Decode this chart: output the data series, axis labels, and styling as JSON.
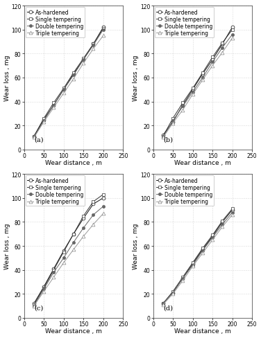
{
  "subplots": [
    "(a)",
    "(b)",
    "(c)",
    "(d)"
  ],
  "legend_labels": [
    "As-hardened",
    "Single tempering",
    "Double tempering",
    "Triple tempering"
  ],
  "xlabel": "Wear distance , m",
  "ylabel": "Wear loss , mg",
  "xlim": [
    0,
    250
  ],
  "ylim": [
    0,
    120
  ],
  "xticks": [
    0,
    50,
    100,
    150,
    200,
    250
  ],
  "yticks": [
    0,
    20,
    40,
    60,
    80,
    100,
    120
  ],
  "x_data": [
    25,
    50,
    75,
    100,
    125,
    150,
    175,
    200
  ],
  "subplot_data": {
    "a": {
      "As-hardened": [
        11,
        25,
        37,
        50,
        63,
        75,
        88,
        102
      ],
      "Single tempering": [
        11,
        26,
        39,
        51,
        64,
        76,
        88,
        101
      ],
      "Double tempering": [
        10,
        24,
        37,
        50,
        62,
        75,
        87,
        100
      ],
      "Triple tempering": [
        10,
        23,
        35,
        47,
        59,
        72,
        84,
        95
      ]
    },
    "b": {
      "As-hardened": [
        12,
        23,
        37,
        50,
        63,
        75,
        88,
        102
      ],
      "Single tempering": [
        11,
        26,
        39,
        51,
        64,
        77,
        89,
        100
      ],
      "Double tempering": [
        10,
        24,
        36,
        48,
        60,
        73,
        85,
        96
      ],
      "Triple tempering": [
        10,
        22,
        33,
        46,
        58,
        70,
        81,
        93
      ]
    },
    "c": {
      "As-hardened": [
        12,
        26,
        41,
        56,
        70,
        83,
        95,
        100
      ],
      "Single tempering": [
        11,
        25,
        40,
        55,
        70,
        85,
        97,
        103
      ],
      "Double tempering": [
        10,
        24,
        38,
        50,
        63,
        75,
        86,
        93
      ],
      "Triple tempering": [
        10,
        22,
        34,
        46,
        57,
        68,
        78,
        87
      ]
    },
    "d": {
      "As-hardened": [
        12,
        21,
        33,
        45,
        57,
        68,
        80,
        90
      ],
      "Single tempering": [
        12,
        22,
        34,
        46,
        58,
        69,
        81,
        91
      ],
      "Double tempering": [
        12,
        21,
        33,
        44,
        56,
        67,
        78,
        88
      ],
      "Triple tempering": [
        11,
        20,
        31,
        43,
        54,
        65,
        76,
        86
      ]
    }
  },
  "background_color": "#ffffff",
  "grid_color": "#bbbbbb",
  "font_size_label": 6.5,
  "font_size_tick": 5.5,
  "font_size_legend": 5.5,
  "font_size_sublabel": 7,
  "series_styles": [
    {
      "color": "#111111",
      "marker": "o",
      "ms": 3.5,
      "mfc": "white",
      "mec": "#111111",
      "lw": 0.7
    },
    {
      "color": "#333333",
      "marker": "s",
      "ms": 3.5,
      "mfc": "white",
      "mec": "#333333",
      "lw": 0.7
    },
    {
      "color": "#666666",
      "marker": "o",
      "ms": 3.0,
      "mfc": "#666666",
      "mec": "#666666",
      "lw": 0.7
    },
    {
      "color": "#999999",
      "marker": "^",
      "ms": 3.5,
      "mfc": "white",
      "mec": "#888888",
      "lw": 0.7
    }
  ]
}
